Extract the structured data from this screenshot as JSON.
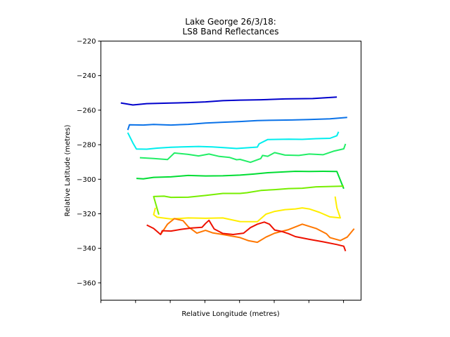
{
  "chart_data": {
    "type": "line",
    "title_lines": [
      "Lake George 26/3/18:",
      "LS8 Band Reflectances"
    ],
    "xlabel": "Relative Longitude (metres)",
    "ylabel": "Relative Latitude (metres)",
    "ylim": [
      -370,
      -220
    ],
    "yticks": [
      -220,
      -240,
      -260,
      -280,
      -300,
      -320,
      -340,
      -360
    ],
    "xlim": [
      0,
      7.5
    ],
    "xticks": [
      0,
      1,
      2,
      3,
      4,
      5,
      6,
      7
    ],
    "grid": false,
    "legend": "none",
    "series": [
      {
        "color": "#0000cc",
        "points": [
          [
            0.55,
            -255.8
          ],
          [
            0.9,
            -257
          ],
          [
            1.3,
            -256.2
          ],
          [
            2.0,
            -255.9
          ],
          [
            2.5,
            -255.6
          ],
          [
            3.0,
            -255.2
          ],
          [
            3.5,
            -254.5
          ],
          [
            4.0,
            -254.2
          ],
          [
            4.6,
            -254.0
          ],
          [
            5.3,
            -253.5
          ],
          [
            6.1,
            -253.3
          ],
          [
            6.8,
            -252.4
          ]
        ]
      },
      {
        "color": "#0a72e8",
        "points": [
          [
            0.75,
            -271.5
          ],
          [
            0.8,
            -268.5
          ],
          [
            1.2,
            -268.6
          ],
          [
            1.5,
            -268.3
          ],
          [
            2.0,
            -268.6
          ],
          [
            2.5,
            -268.2
          ],
          [
            3.0,
            -267.5
          ],
          [
            3.5,
            -267.0
          ],
          [
            4.0,
            -266.6
          ],
          [
            4.5,
            -266.0
          ],
          [
            5.0,
            -265.8
          ],
          [
            5.5,
            -265.7
          ],
          [
            6.0,
            -265.4
          ],
          [
            6.6,
            -265.0
          ],
          [
            7.1,
            -264.2
          ]
        ]
      },
      {
        "color": "#00eeee",
        "points": [
          [
            0.75,
            -273.0
          ],
          [
            0.9,
            -279
          ],
          [
            1.0,
            -282.5
          ],
          [
            1.3,
            -282.6
          ],
          [
            1.6,
            -282.0
          ],
          [
            2.0,
            -281.5
          ],
          [
            2.4,
            -281.2
          ],
          [
            2.8,
            -281.0
          ],
          [
            3.2,
            -281.3
          ],
          [
            3.6,
            -281.8
          ],
          [
            3.9,
            -282.2
          ],
          [
            4.5,
            -281.4
          ],
          [
            4.55,
            -279.5
          ],
          [
            4.8,
            -277
          ],
          [
            5.4,
            -276.8
          ],
          [
            5.8,
            -276.9
          ],
          [
            6.2,
            -276.5
          ],
          [
            6.6,
            -276.3
          ],
          [
            6.8,
            -274.8
          ],
          [
            6.85,
            -272.5
          ]
        ]
      },
      {
        "color": "#22ee66",
        "points": [
          [
            1.1,
            -287.5
          ],
          [
            1.5,
            -288.0
          ],
          [
            1.9,
            -288.6
          ],
          [
            2.1,
            -284.8
          ],
          [
            2.5,
            -285.6
          ],
          [
            2.8,
            -286.5
          ],
          [
            3.1,
            -285.4
          ],
          [
            3.4,
            -286.8
          ],
          [
            3.7,
            -287.4
          ],
          [
            3.9,
            -288.7
          ],
          [
            4.0,
            -288.5
          ],
          [
            4.3,
            -290.2
          ],
          [
            4.6,
            -288.0
          ],
          [
            4.65,
            -286.2
          ],
          [
            4.8,
            -286.7
          ],
          [
            5.0,
            -284.6
          ],
          [
            5.3,
            -286.0
          ],
          [
            5.7,
            -286.2
          ],
          [
            6.0,
            -285.4
          ],
          [
            6.4,
            -285.8
          ],
          [
            6.7,
            -283.8
          ],
          [
            7.0,
            -282.4
          ],
          [
            7.05,
            -279.5
          ]
        ]
      },
      {
        "color": "#00dd33",
        "points": [
          [
            1.0,
            -299.5
          ],
          [
            1.2,
            -299.8
          ],
          [
            1.5,
            -298.9
          ],
          [
            2.0,
            -298.6
          ],
          [
            2.5,
            -297.8
          ],
          [
            3.0,
            -298.1
          ],
          [
            3.5,
            -298.0
          ],
          [
            4.0,
            -297.6
          ],
          [
            4.4,
            -297.0
          ],
          [
            4.8,
            -296.2
          ],
          [
            5.2,
            -295.8
          ],
          [
            5.6,
            -295.4
          ],
          [
            6.0,
            -295.5
          ],
          [
            6.4,
            -295.4
          ],
          [
            6.8,
            -295.5
          ],
          [
            7.0,
            -305.5
          ]
        ]
      },
      {
        "color": "#77ee00",
        "points": [
          [
            1.65,
            -320.5
          ],
          [
            1.5,
            -310.0
          ],
          [
            1.8,
            -309.8
          ],
          [
            2.0,
            -310.5
          ],
          [
            2.5,
            -310.4
          ],
          [
            3.0,
            -309.4
          ],
          [
            3.5,
            -308.2
          ],
          [
            4.0,
            -308.2
          ],
          [
            4.2,
            -307.8
          ],
          [
            4.6,
            -306.5
          ],
          [
            5.0,
            -306.0
          ],
          [
            5.4,
            -305.4
          ],
          [
            5.8,
            -305.2
          ],
          [
            6.2,
            -304.4
          ],
          [
            6.6,
            -304.2
          ],
          [
            7.0,
            -304.0
          ]
        ]
      },
      {
        "color": "#ffee00",
        "points": [
          [
            1.55,
            -316.5
          ],
          [
            1.5,
            -320.5
          ],
          [
            1.6,
            -322.0
          ],
          [
            2.0,
            -323.0
          ],
          [
            2.5,
            -322.4
          ],
          [
            3.0,
            -322.6
          ],
          [
            3.5,
            -322.4
          ],
          [
            4.0,
            -324.5
          ],
          [
            4.5,
            -324.6
          ],
          [
            4.75,
            -320.2
          ],
          [
            5.0,
            -318.6
          ],
          [
            5.3,
            -317.6
          ],
          [
            5.6,
            -317.2
          ],
          [
            5.8,
            -316.6
          ],
          [
            6.0,
            -317.2
          ],
          [
            6.3,
            -319.2
          ],
          [
            6.6,
            -321.8
          ],
          [
            6.9,
            -322.4
          ],
          [
            6.8,
            -316.5
          ],
          [
            6.75,
            -310.0
          ]
        ]
      },
      {
        "color": "#ff7700",
        "points": [
          [
            1.7,
            -332.0
          ],
          [
            1.9,
            -326.0
          ],
          [
            2.1,
            -322.8
          ],
          [
            2.35,
            -324.0
          ],
          [
            2.5,
            -327.5
          ],
          [
            2.75,
            -331.2
          ],
          [
            3.0,
            -329.6
          ],
          [
            3.2,
            -331.0
          ],
          [
            3.5,
            -332.0
          ],
          [
            4.0,
            -333.8
          ],
          [
            4.25,
            -335.6
          ],
          [
            4.5,
            -336.5
          ],
          [
            4.75,
            -333.5
          ],
          [
            5.0,
            -331.2
          ],
          [
            5.4,
            -329.2
          ],
          [
            5.8,
            -326.0
          ],
          [
            6.2,
            -328.5
          ],
          [
            6.5,
            -331.6
          ],
          [
            6.6,
            -333.8
          ],
          [
            6.9,
            -335.5
          ],
          [
            7.1,
            -333.5
          ],
          [
            7.3,
            -328.6
          ]
        ]
      },
      {
        "color": "#ee1100",
        "points": [
          [
            1.3,
            -326.5
          ],
          [
            1.5,
            -328.5
          ],
          [
            1.7,
            -332.0
          ],
          [
            1.75,
            -329.8
          ],
          [
            2.0,
            -330.0
          ],
          [
            2.3,
            -329.0
          ],
          [
            2.6,
            -328.2
          ],
          [
            2.9,
            -327.8
          ],
          [
            3.0,
            -325.6
          ],
          [
            3.1,
            -323.8
          ],
          [
            3.25,
            -328.8
          ],
          [
            3.5,
            -331.4
          ],
          [
            3.8,
            -332.0
          ],
          [
            4.1,
            -331.2
          ],
          [
            4.3,
            -328.0
          ],
          [
            4.5,
            -326.0
          ],
          [
            4.7,
            -324.8
          ],
          [
            4.85,
            -326.0
          ],
          [
            5.0,
            -329.4
          ],
          [
            5.2,
            -330.2
          ],
          [
            5.4,
            -331.5
          ],
          [
            5.6,
            -333.2
          ],
          [
            6.0,
            -334.8
          ],
          [
            6.4,
            -336.2
          ],
          [
            6.8,
            -337.8
          ],
          [
            7.0,
            -338.8
          ],
          [
            7.05,
            -341.6
          ]
        ]
      }
    ]
  }
}
